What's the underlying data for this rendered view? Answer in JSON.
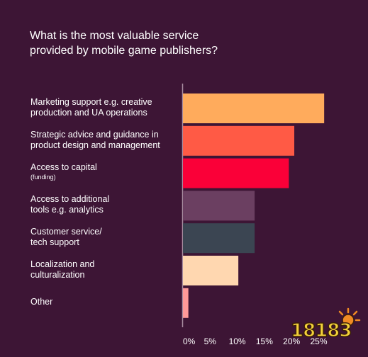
{
  "chart_data": {
    "type": "bar",
    "orientation": "horizontal",
    "title": "What is the most valuable service provided by mobile game publishers?",
    "title_lines": [
      "What is the most valuable service",
      "provided by mobile game publishers?"
    ],
    "categories": [
      "Marketing support e.g. creative production and UA operations",
      "Strategic advice and guidance in product design and management",
      "Access to capital (funding)",
      "Access to additional tools e.g. analytics",
      "Customer service/ tech support",
      "Localization and culturalization",
      "Other"
    ],
    "category_lines": [
      {
        "l1": "Marketing support e.g. creative",
        "l2": "production and UA operations"
      },
      {
        "l1": "Strategic advice and guidance in",
        "l2": "product design and management"
      },
      {
        "l1": "Access to capital",
        "l2": "(funding)"
      },
      {
        "l1": "Access to additional",
        "l2": "tools e.g. analytics"
      },
      {
        "l1": "Customer service/",
        "l2": "tech support"
      },
      {
        "l1": "Localization and",
        "l2": "culturalization"
      },
      {
        "l1": "Other",
        "l2": ""
      }
    ],
    "values": [
      26,
      20.5,
      19.5,
      13.2,
      13.2,
      10.2,
      1.0
    ],
    "unit": "%",
    "xlim": [
      0,
      25
    ],
    "x_ticks": [
      0,
      5,
      10,
      15,
      20,
      25
    ],
    "x_tick_labels": [
      "0%",
      "5%",
      "10%",
      "15%",
      "20%",
      "25%"
    ],
    "colors": [
      "#ffab5c",
      "#ff5a45",
      "#fa0038",
      "#6b3f61",
      "#3b4552",
      "#ffd7b0",
      "#ff9999"
    ],
    "grid": false,
    "legend": "none"
  },
  "watermark": {
    "text": "18183",
    "color": "#f4d23a"
  },
  "colors": {
    "background": "#3d1535",
    "axis": "#a88ea0",
    "text": "#ffffff"
  }
}
